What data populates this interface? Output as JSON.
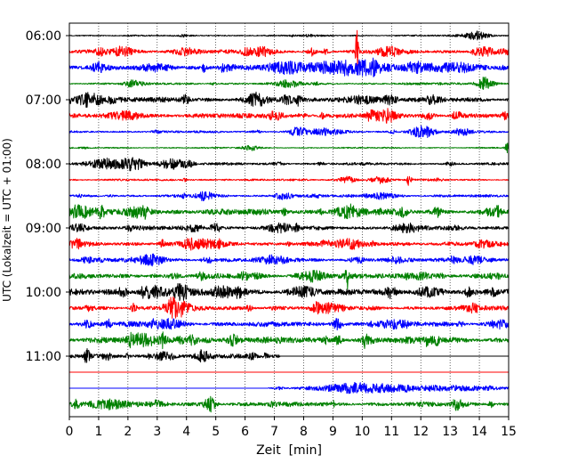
{
  "chart_data": {
    "type": "line",
    "xlabel": "Zeit  [min]",
    "ylabel": "UTC (Lokalzeit = UTC + 01:00)",
    "xlim": [
      0,
      15
    ],
    "xticks": [
      "0",
      "1",
      "2",
      "3",
      "4",
      "5",
      "6",
      "7",
      "8",
      "9",
      "10",
      "11",
      "12",
      "13",
      "14",
      "15"
    ],
    "yticks": [
      "06:00",
      "07:00",
      "08:00",
      "09:00",
      "10:00",
      "11:00"
    ],
    "interval_min": 15,
    "grid": "x",
    "grid_style": "dotted",
    "colors": [
      "#000000",
      "#ff0000",
      "#0000ff",
      "#008000"
    ],
    "traces": [
      {
        "color": "#000000",
        "noise": 0.05,
        "events": [
          [
            13.9,
            0.25,
            0.4
          ]
        ]
      },
      {
        "color": "#ff0000",
        "noise": 0.12,
        "events": [
          [
            1.8,
            0.3,
            0.3
          ],
          [
            4.0,
            0.2,
            0.5
          ],
          [
            6.5,
            0.25,
            0.4
          ],
          [
            9.82,
            1.4,
            0.05
          ],
          [
            10.9,
            0.25,
            0.4
          ],
          [
            14.2,
            0.25,
            0.3
          ]
        ]
      },
      {
        "color": "#0000ff",
        "noise": 0.15,
        "events": [
          [
            3.0,
            0.25,
            0.5
          ],
          [
            7.5,
            0.3,
            0.8
          ],
          [
            9.6,
            0.4,
            1.2
          ],
          [
            13.0,
            0.3,
            1.0
          ]
        ]
      },
      {
        "color": "#008000",
        "noise": 0.07,
        "events": [
          [
            2.2,
            0.2,
            0.3
          ],
          [
            7.5,
            0.2,
            0.4
          ],
          [
            14.2,
            0.35,
            0.3
          ]
        ]
      },
      {
        "color": "#000000",
        "noise": 0.16,
        "events": [
          [
            0.7,
            0.25,
            0.5
          ],
          [
            6.4,
            0.25,
            0.4
          ],
          [
            10.0,
            0.25,
            0.5
          ]
        ]
      },
      {
        "color": "#ff0000",
        "noise": 0.14,
        "events": [
          [
            2.0,
            0.25,
            0.5
          ],
          [
            7.0,
            0.25,
            0.3
          ],
          [
            10.8,
            0.2,
            0.5
          ]
        ]
      },
      {
        "color": "#0000ff",
        "noise": 0.07,
        "events": [
          [
            7.8,
            0.25,
            0.3
          ],
          [
            8.7,
            0.2,
            0.5
          ],
          [
            12.0,
            0.35,
            0.4
          ],
          [
            13.4,
            0.2,
            0.3
          ]
        ]
      },
      {
        "color": "#008000",
        "noise": 0.04,
        "events": [
          [
            6.2,
            0.15,
            0.3
          ],
          [
            14.95,
            0.4,
            0.05
          ]
        ]
      },
      {
        "color": "#000000",
        "noise": 0.08,
        "events": [
          [
            1.3,
            0.3,
            0.6
          ],
          [
            2.2,
            0.35,
            0.4
          ],
          [
            3.5,
            0.3,
            0.5
          ]
        ]
      },
      {
        "color": "#ff0000",
        "noise": 0.06,
        "events": [
          [
            9.5,
            0.2,
            0.3
          ],
          [
            10.6,
            0.2,
            0.3
          ],
          [
            11.6,
            0.45,
            0.08
          ]
        ]
      },
      {
        "color": "#0000ff",
        "noise": 0.08,
        "events": [
          [
            4.6,
            0.25,
            0.3
          ],
          [
            7.3,
            0.25,
            0.3
          ],
          [
            10.6,
            0.2,
            0.5
          ]
        ]
      },
      {
        "color": "#008000",
        "noise": 0.18,
        "events": [
          [
            0.3,
            0.3,
            0.4
          ],
          [
            2.4,
            0.3,
            0.4
          ],
          [
            9.5,
            0.25,
            0.5
          ]
        ]
      },
      {
        "color": "#000000",
        "noise": 0.13,
        "events": [
          [
            0.3,
            0.25,
            0.3
          ],
          [
            7.2,
            0.2,
            0.4
          ],
          [
            11.5,
            0.2,
            0.5
          ]
        ]
      },
      {
        "color": "#ff0000",
        "noise": 0.15,
        "events": [
          [
            4.5,
            0.25,
            0.5
          ],
          [
            9.5,
            0.2,
            0.5
          ]
        ]
      },
      {
        "color": "#0000ff",
        "noise": 0.13,
        "events": [
          [
            2.8,
            0.35,
            0.4
          ],
          [
            7.0,
            0.2,
            0.5
          ],
          [
            13.8,
            0.2,
            0.5
          ]
        ]
      },
      {
        "color": "#008000",
        "noise": 0.15,
        "events": [
          [
            8.3,
            0.3,
            0.5
          ],
          [
            9.48,
            0.75,
            0.06
          ],
          [
            12.0,
            0.2,
            0.4
          ]
        ]
      },
      {
        "color": "#000000",
        "noise": 0.18,
        "events": [
          [
            2.8,
            0.35,
            0.4
          ],
          [
            3.8,
            0.35,
            0.4
          ],
          [
            8.0,
            0.3,
            0.5
          ],
          [
            12.3,
            0.25,
            0.5
          ]
        ]
      },
      {
        "color": "#ff0000",
        "noise": 0.14,
        "events": [
          [
            2.2,
            0.25,
            0.1
          ],
          [
            3.5,
            0.6,
            0.15
          ],
          [
            3.8,
            0.35,
            0.3
          ],
          [
            8.8,
            0.2,
            0.4
          ],
          [
            13.8,
            0.2,
            0.3
          ]
        ]
      },
      {
        "color": "#0000ff",
        "noise": 0.15,
        "events": [
          [
            3.4,
            0.25,
            0.5
          ],
          [
            11.0,
            0.2,
            0.5
          ],
          [
            14.7,
            0.3,
            0.3
          ]
        ]
      },
      {
        "color": "#008000",
        "noise": 0.2,
        "events": [
          [
            2.5,
            0.25,
            0.5
          ],
          [
            10.1,
            0.4,
            0.1
          ],
          [
            12.2,
            0.3,
            0.05
          ]
        ]
      },
      {
        "color": "#000000",
        "noise": 0.12,
        "active": [
          0,
          7.2
        ],
        "events": [
          [
            0.6,
            0.5,
            0.08
          ],
          [
            3.2,
            0.25,
            0.3
          ],
          [
            4.6,
            0.25,
            0.3
          ]
        ]
      },
      {
        "color": "#ff0000",
        "noise": 0.0,
        "events": []
      },
      {
        "color": "#0000ff",
        "noise": 0.06,
        "active": [
          6.8,
          15
        ],
        "events": [
          [
            10.0,
            0.3,
            1.5
          ],
          [
            13.0,
            0.15,
            1.5
          ]
        ]
      },
      {
        "color": "#008000",
        "noise": 0.14,
        "events": [
          [
            1.2,
            0.25,
            0.8
          ],
          [
            4.8,
            0.45,
            0.2
          ]
        ]
      }
    ]
  }
}
